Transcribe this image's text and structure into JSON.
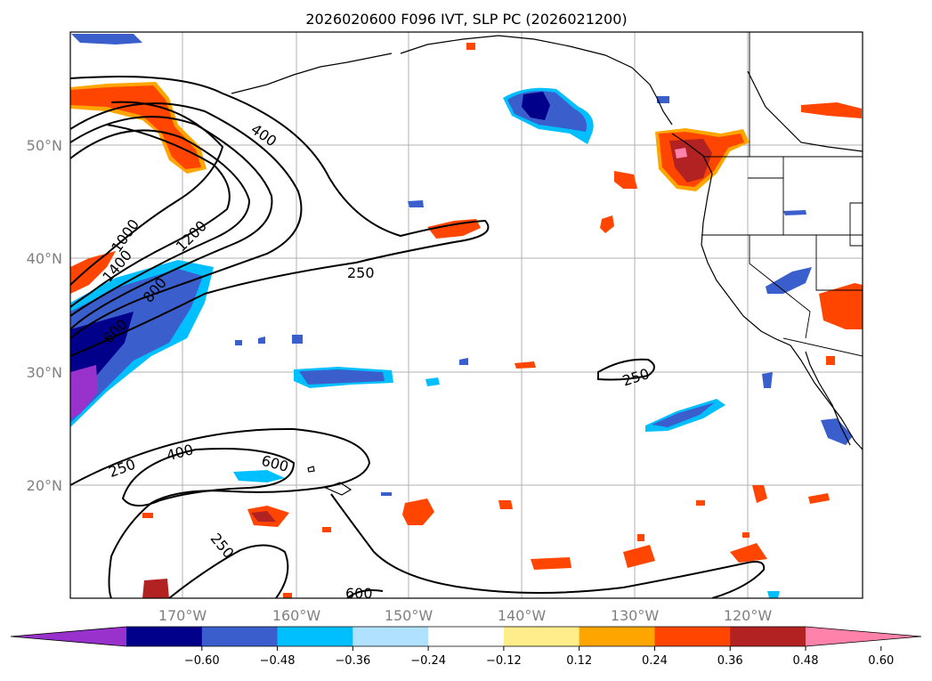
{
  "title": "2026020600 F096 IVT, SLP PC (2026021200)",
  "lat_labels": [
    "50°N",
    "40°N",
    "30°N",
    "20°N"
  ],
  "lon_labels": [
    "170°W",
    "160°W",
    "150°W",
    "140°W",
    "130°W",
    "120°W"
  ],
  "colorbar": {
    "ticks": [
      "−0.60",
      "−0.48",
      "−0.36",
      "−0.24",
      "−0.12",
      "0.12",
      "0.24",
      "0.36",
      "0.48",
      "0.60"
    ],
    "colors": [
      "#9932cc",
      "#00008b",
      "#3a5fcd",
      "#00bfff",
      "#b0e2ff",
      "#ffffff",
      "#ffec8b",
      "#ffa500",
      "#ff4500",
      "#b22222",
      "#ff82ab"
    ]
  },
  "contour_labels": [
    "400",
    "1000",
    "1200",
    "1400",
    "800",
    "600",
    "250",
    "250",
    "250",
    "400",
    "600",
    "250",
    "600"
  ],
  "map": {
    "projection": "equirectangular",
    "lon_range": [
      -180,
      -110
    ],
    "lat_range": [
      10,
      60
    ],
    "gridlines": true
  }
}
